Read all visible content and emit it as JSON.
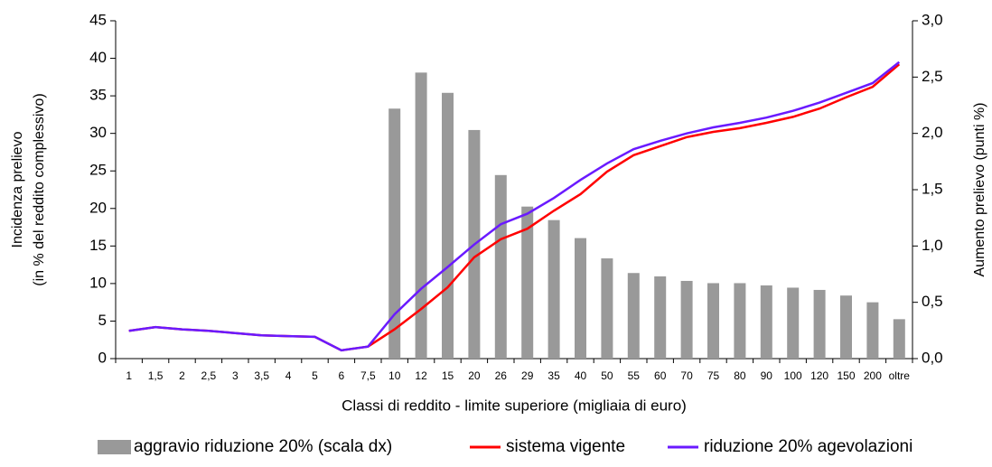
{
  "chart_data": {
    "type": "bar-line",
    "x_label": "Classi di reddito - limite superiore (migliaia di euro)",
    "y_label": [
      "Incidenza prelievo",
      "(in % del reddito complessivo)"
    ],
    "y2_label": "Aumento prelievo (punti %)",
    "categories": [
      "1",
      "1,5",
      "2",
      "2,5",
      "3",
      "3,5",
      "4",
      "5",
      "6",
      "7,5",
      "10",
      "12",
      "15",
      "20",
      "26",
      "29",
      "35",
      "40",
      "50",
      "55",
      "60",
      "70",
      "75",
      "80",
      "90",
      "100",
      "120",
      "150",
      "200",
      "oltre"
    ],
    "ylim": [
      0,
      45
    ],
    "yticks": [
      0,
      5,
      10,
      15,
      20,
      25,
      30,
      35,
      40,
      45
    ],
    "y2lim": [
      0,
      3
    ],
    "y2ticks": [
      {
        "value": 0,
        "label": "0,0"
      },
      {
        "value": 0.5,
        "label": "0,5"
      },
      {
        "value": 1,
        "label": "1,0"
      },
      {
        "value": 1.5,
        "label": "1,5"
      },
      {
        "value": 2,
        "label": "2,0"
      },
      {
        "value": 2.5,
        "label": "2,5"
      },
      {
        "value": 3,
        "label": "3,0"
      }
    ],
    "series": [
      {
        "name": "aggravio riduzione 20% (scala dx)",
        "type": "bar",
        "axis": "y2",
        "color": "#999999",
        "values": [
          null,
          null,
          null,
          null,
          null,
          null,
          null,
          null,
          null,
          null,
          2.22,
          2.54,
          2.36,
          2.03,
          1.63,
          1.35,
          1.23,
          1.07,
          0.89,
          0.76,
          0.73,
          0.69,
          0.67,
          0.67,
          0.65,
          0.63,
          0.61,
          0.56,
          0.5,
          0.35
        ]
      },
      {
        "name": "sistema vigente",
        "type": "line",
        "color": "#ff0000",
        "values": [
          3.7,
          4.2,
          3.9,
          3.7,
          3.4,
          3.1,
          3.0,
          2.9,
          1.1,
          1.6,
          3.9,
          6.6,
          9.5,
          13.5,
          15.9,
          17.3,
          19.7,
          21.9,
          24.9,
          27.1,
          28.3,
          29.5,
          30.2,
          30.7,
          31.4,
          32.2,
          33.3,
          34.8,
          36.2,
          39.2
        ]
      },
      {
        "name": "riduzione 20% agevolazioni",
        "type": "line",
        "color": "#6a1aff",
        "values": [
          3.7,
          4.2,
          3.9,
          3.7,
          3.4,
          3.1,
          3.0,
          2.9,
          1.1,
          1.6,
          5.9,
          9.3,
          12.2,
          15.2,
          17.9,
          19.3,
          21.4,
          23.8,
          26.0,
          27.9,
          29.0,
          30.0,
          30.8,
          31.4,
          32.1,
          33.0,
          34.1,
          35.4,
          36.7,
          39.5
        ]
      }
    ]
  }
}
